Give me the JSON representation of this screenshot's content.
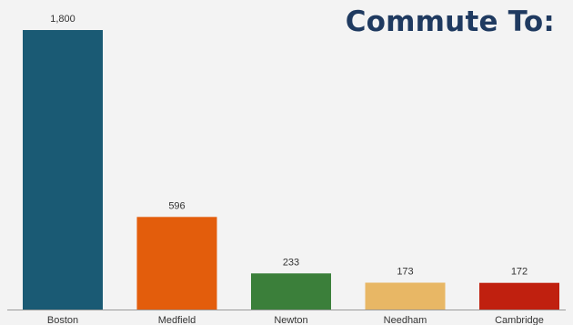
{
  "chart_data": {
    "type": "bar",
    "title": "Commute To:",
    "categories": [
      "Boston",
      "Medfield",
      "Newton",
      "Needham",
      "Cambridge"
    ],
    "values": [
      1800,
      596,
      233,
      173,
      172
    ],
    "value_labels": [
      "1,800",
      "596",
      "233",
      "173",
      "172"
    ],
    "colors": [
      "#1a5a74",
      "#e35d0c",
      "#3b7f3a",
      "#e8b765",
      "#c0200f"
    ],
    "xlabel": "",
    "ylabel": "",
    "ylim": [
      0,
      1800
    ],
    "grid": false,
    "legend": "none"
  }
}
